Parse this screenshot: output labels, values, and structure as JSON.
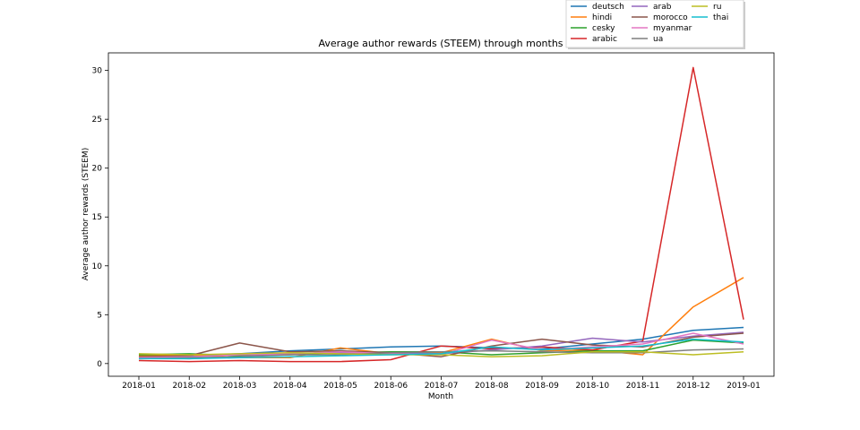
{
  "chart_data": {
    "type": "line",
    "title": "Average author rewards (STEEM) through months",
    "xlabel": "Month",
    "ylabel": "Average author rewards (STEEM)",
    "categories": [
      "2018-01",
      "2018-02",
      "2018-03",
      "2018-04",
      "2018-05",
      "2018-06",
      "2018-07",
      "2018-08",
      "2018-09",
      "2018-10",
      "2018-11",
      "2018-12",
      "2019-01"
    ],
    "ylim": [
      -1.3,
      31.8
    ],
    "yticks": [
      0,
      5,
      10,
      15,
      20,
      25,
      30
    ],
    "grid": false,
    "legend_position": "top-right",
    "series": [
      {
        "name": "deutsch",
        "color": "#1f77b4",
        "values": [
          0.7,
          0.8,
          1.0,
          1.3,
          1.5,
          1.7,
          1.8,
          1.6,
          1.5,
          2.0,
          2.5,
          3.4,
          3.7
        ]
      },
      {
        "name": "hindi",
        "color": "#ff7f0e",
        "values": [
          0.8,
          0.9,
          0.6,
          0.6,
          1.6,
          1.0,
          1.1,
          2.5,
          1.3,
          1.4,
          0.9,
          5.8,
          8.8
        ]
      },
      {
        "name": "cesky",
        "color": "#2ca02c",
        "values": [
          0.9,
          1.0,
          0.8,
          0.9,
          1.1,
          1.2,
          1.2,
          0.9,
          1.1,
          1.3,
          1.3,
          2.4,
          2.1
        ]
      },
      {
        "name": "arabic",
        "color": "#d62728",
        "values": [
          0.3,
          0.2,
          0.3,
          0.2,
          0.2,
          0.4,
          1.8,
          1.5,
          1.7,
          1.4,
          2.3,
          30.3,
          4.5
        ]
      },
      {
        "name": "arab",
        "color": "#9467bd",
        "values": [
          0.6,
          0.5,
          0.7,
          1.0,
          1.1,
          1.1,
          1.0,
          1.4,
          1.8,
          2.6,
          2.2,
          2.8,
          3.2
        ]
      },
      {
        "name": "morocco",
        "color": "#8c564b",
        "values": [
          0.7,
          0.8,
          2.1,
          1.2,
          1.3,
          1.1,
          0.7,
          1.8,
          2.5,
          1.9,
          1.7,
          2.7,
          3.1
        ]
      },
      {
        "name": "myanmar",
        "color": "#e377c2",
        "values": [
          0.6,
          0.7,
          0.9,
          1.0,
          1.2,
          1.0,
          0.9,
          2.4,
          1.4,
          1.7,
          2.0,
          3.1,
          2.0
        ]
      },
      {
        "name": "ua",
        "color": "#7f7f7f",
        "values": [
          0.5,
          0.6,
          0.7,
          0.9,
          0.9,
          1.1,
          1.2,
          1.3,
          1.2,
          1.1,
          1.1,
          1.4,
          1.5
        ]
      },
      {
        "name": "ru",
        "color": "#bcbd22",
        "values": [
          1.0,
          0.9,
          1.0,
          1.1,
          1.0,
          0.9,
          0.9,
          0.7,
          0.8,
          1.2,
          1.2,
          0.9,
          1.2
        ]
      },
      {
        "name": "thai",
        "color": "#17becf",
        "values": [
          0.5,
          0.5,
          0.6,
          0.7,
          0.8,
          0.9,
          1.0,
          1.7,
          1.4,
          1.6,
          1.8,
          2.5,
          2.2
        ]
      }
    ]
  }
}
